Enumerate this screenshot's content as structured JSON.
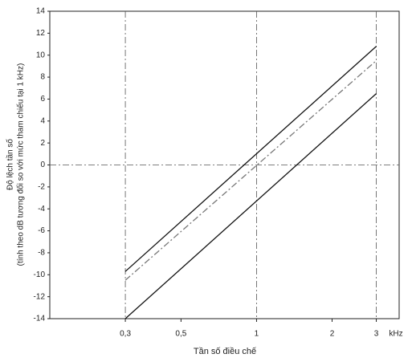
{
  "chart_data": {
    "type": "line",
    "x_label": "Tần số điều chế",
    "x_unit": "kHz",
    "y_label": [
      "Độ lệch tần số",
      "(tính theo dB tương đối so với mức tham chiếu tại 1 kHz)"
    ],
    "x_scale": "log",
    "xlim": [
      0.15,
      3.7
    ],
    "ylim": [
      -14,
      14
    ],
    "xticks": [
      {
        "value": 0.3,
        "label": "0,3"
      },
      {
        "value": 0.5,
        "label": "0,5"
      },
      1,
      2,
      3
    ],
    "yticks": [
      -14,
      -12,
      -10,
      -8,
      -6,
      -4,
      -2,
      0,
      2,
      4,
      6,
      8,
      10,
      12,
      14
    ],
    "xgrid": [
      0.3,
      1,
      3
    ],
    "ygrid": [
      0
    ],
    "grid_color": "#555555",
    "x": [
      0.3,
      3
    ],
    "series": [
      {
        "color": "#111111",
        "linestyle": "solid",
        "values": [
          -9.7,
          10.8
        ]
      },
      {
        "color": "#777777",
        "linestyle": "dashdot",
        "values": [
          -10.5,
          9.5
        ]
      },
      {
        "color": "#111111",
        "linestyle": "solid",
        "values": [
          -14,
          6.5
        ]
      }
    ]
  }
}
